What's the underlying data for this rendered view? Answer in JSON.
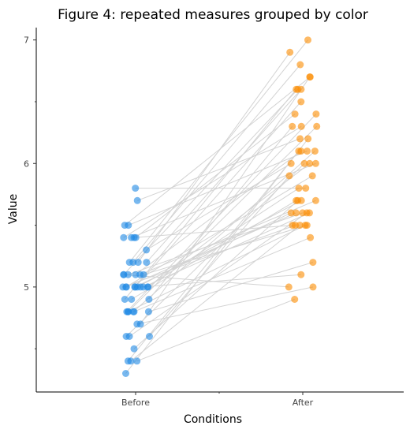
{
  "chart_data": {
    "type": "scatter",
    "title": "Figure 4: repeated measures grouped by color",
    "xlabel": "Conditions",
    "ylabel": "Value",
    "categories": [
      "Before",
      "After"
    ],
    "ylim": [
      4.15,
      7.1
    ],
    "y_ticks": [
      5,
      6,
      7
    ],
    "y_tick_labels": [
      "5",
      "6",
      "7"
    ],
    "grid": false,
    "legend": "none",
    "colors": {
      "Before": "#1e88e5",
      "After": "#fb8c00",
      "connector": "#d3d3d3"
    },
    "series": [
      {
        "values": [
          5.8,
          5.7,
          5.5,
          5.5,
          5.4,
          5.4,
          5.4,
          5.3,
          5.2,
          5.2,
          5.2,
          5.1,
          5.1,
          5.1,
          5.1,
          5.1,
          5.0,
          5.0,
          5.0,
          5.0,
          5.0,
          5.0,
          5.0,
          4.9,
          4.9,
          4.8,
          4.8,
          4.8,
          4.8,
          4.7,
          4.7,
          4.6,
          4.6,
          4.6,
          4.5,
          4.4,
          4.4,
          4.4,
          4.3,
          5.0,
          4.9,
          5.4,
          5.1,
          5.0,
          4.8,
          5.2,
          5.0,
          4.8
        ]
      },
      {
        "values": [
          5.8,
          6.2,
          6.7,
          6.1,
          5.5,
          6.4,
          6.3,
          6.0,
          6.9,
          6.8,
          7.0,
          5.5,
          5.7,
          6.6,
          6.1,
          5.6,
          5.1,
          5.9,
          5.7,
          6.5,
          5.6,
          5.5,
          6.0,
          6.3,
          6.6,
          5.4,
          5.2,
          6.4,
          6.1,
          5.0,
          6.7,
          5.6,
          6.0,
          5.9,
          5.7,
          6.1,
          4.9,
          5.5,
          6.2,
          5.6,
          5.7,
          6.0,
          5.0,
          5.8,
          5.5,
          6.6,
          5.6,
          6.3
        ]
      }
    ]
  }
}
